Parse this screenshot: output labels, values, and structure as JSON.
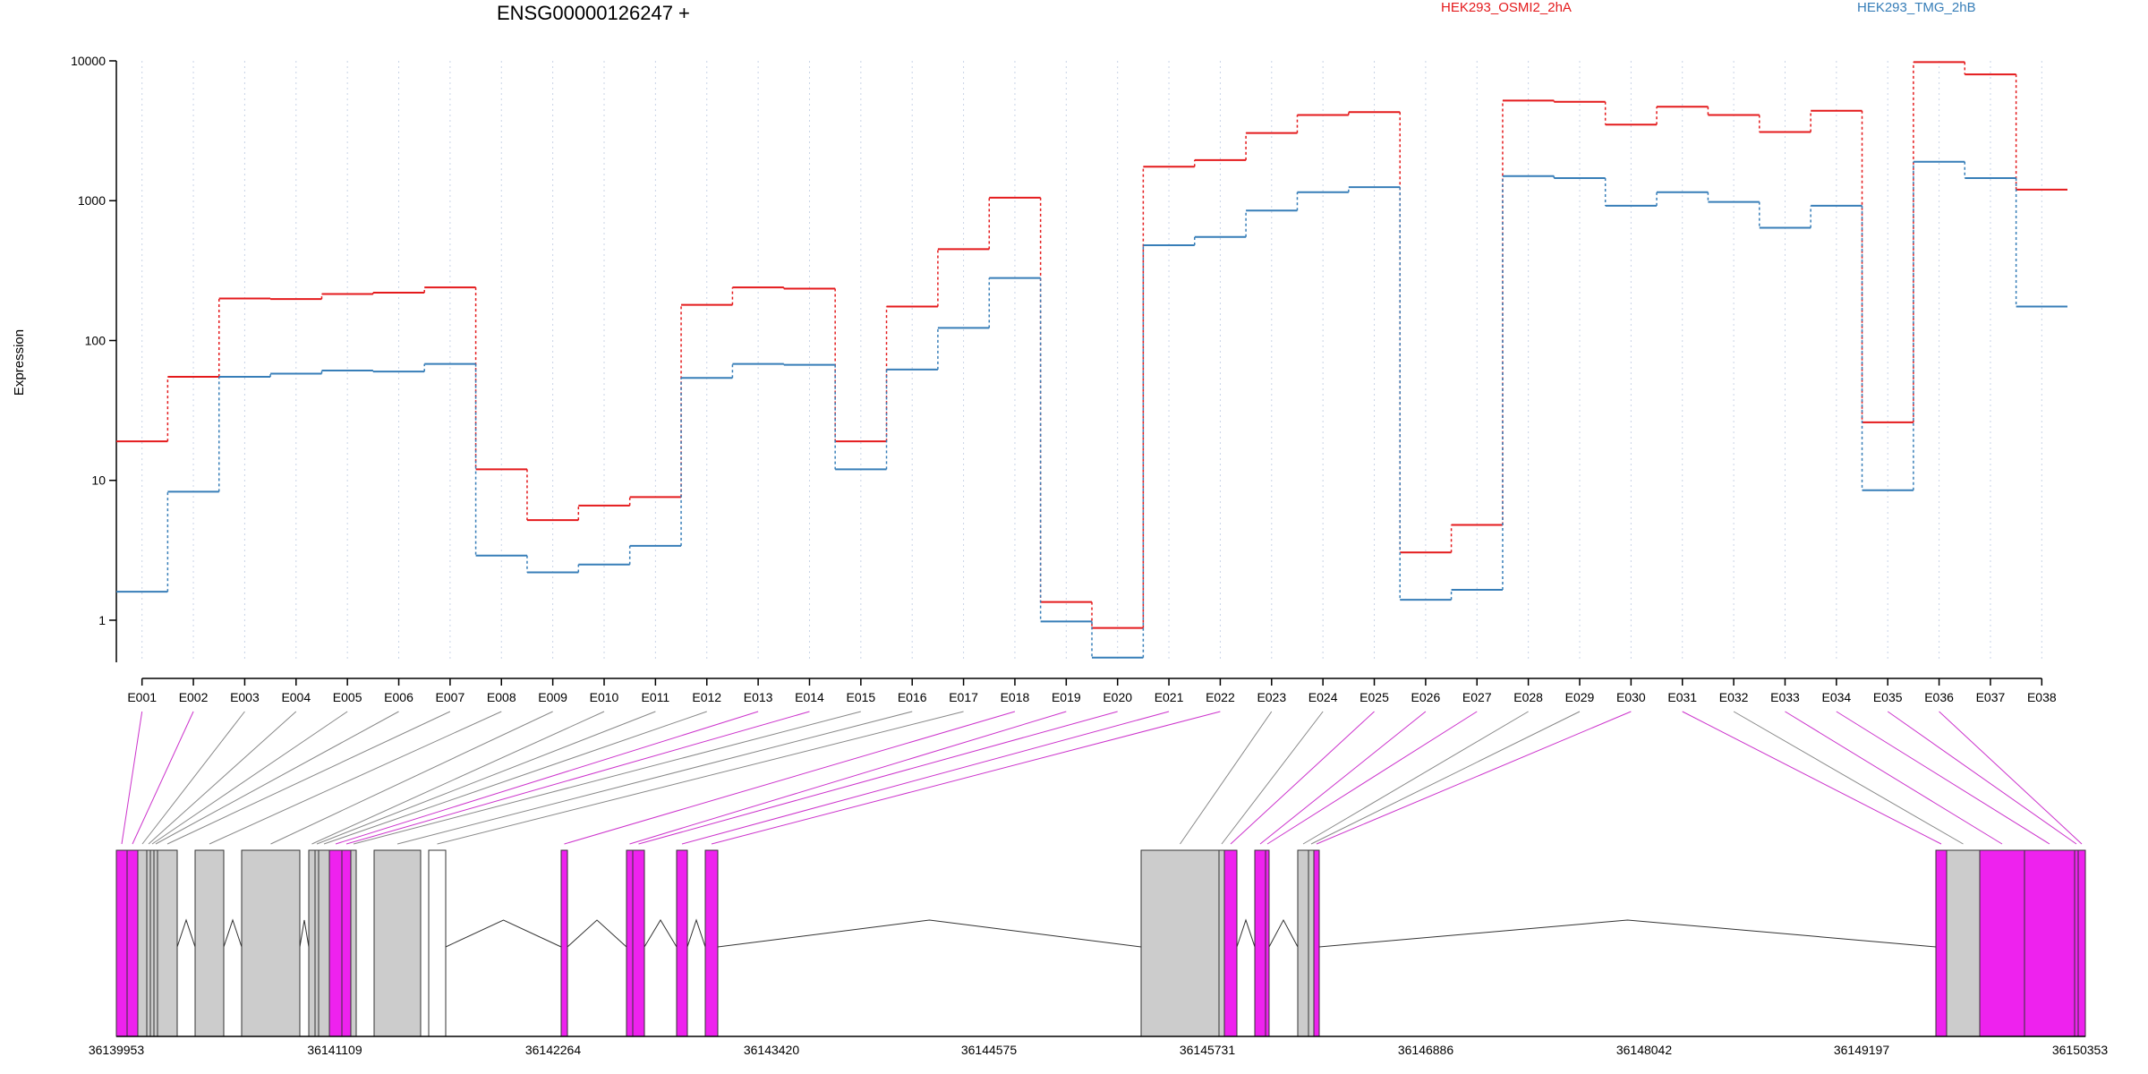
{
  "chart_data": {
    "type": "line",
    "title": "ENSG00000126247 +",
    "ylabel": "Expression",
    "xlabel": "",
    "yscale": "log",
    "ylim": [
      0.5,
      10000
    ],
    "yticks": [
      1,
      10,
      100,
      1000,
      10000
    ],
    "ytick_labels": [
      "1",
      "10",
      "100",
      "1000",
      "10000"
    ],
    "grid": "vertical dotted lines at each exon bin",
    "legend_placement": "top",
    "categories": [
      "E001",
      "E002",
      "E003",
      "E004",
      "E005",
      "E006",
      "E007",
      "E008",
      "E009",
      "E010",
      "E011",
      "E012",
      "E013",
      "E014",
      "E015",
      "E016",
      "E017",
      "E018",
      "E019",
      "E020",
      "E021",
      "E022",
      "E023",
      "E024",
      "E025",
      "E026",
      "E027",
      "E028",
      "E029",
      "E030",
      "E031",
      "E032",
      "E033",
      "E034",
      "E035",
      "E036",
      "E037",
      "E038"
    ],
    "series": [
      {
        "name": "HEK293_OSMI2_2hA",
        "color": "#e41a1c",
        "values": [
          19,
          55,
          200,
          198,
          215,
          220,
          240,
          12,
          5.2,
          6.6,
          7.6,
          180,
          240,
          235,
          19,
          175,
          450,
          1050,
          1.35,
          0.88,
          1750,
          1950,
          3050,
          4100,
          4300,
          3.05,
          4.8,
          5200,
          5100,
          3500,
          4700,
          4100,
          3100,
          4400,
          26,
          9800,
          8000,
          1200
        ]
      },
      {
        "name": "HEK293_TMG_2hB",
        "color": "#377eb8",
        "values": [
          1.6,
          8.3,
          55,
          58,
          61,
          60,
          68,
          2.9,
          2.2,
          2.5,
          3.4,
          54,
          68,
          67,
          12,
          62,
          123,
          280,
          0.98,
          0.54,
          480,
          550,
          850,
          1150,
          1250,
          1.4,
          1.65,
          1500,
          1450,
          920,
          1150,
          980,
          640,
          920,
          8.5,
          1900,
          1450,
          175
        ]
      }
    ],
    "gene_model": {
      "coordinate_ticks": [
        "36139953",
        "36141109",
        "36142264",
        "36143420",
        "36144575",
        "36145731",
        "36146886",
        "36148042",
        "36149197",
        "36150353"
      ],
      "coord_start": 36139953,
      "coord_end": 36150353,
      "highlight_color": "#ee22ee",
      "plain_color": "#cccccc",
      "exons": [
        {
          "start": 36139953,
          "end": 36140015,
          "highlight": true
        },
        {
          "start": 36140015,
          "end": 36140065,
          "highlight": true
        },
        {
          "start": 36140065,
          "end": 36140085,
          "highlight": false
        },
        {
          "start": 36140085,
          "end": 36140095,
          "highlight": false
        },
        {
          "start": 36140095,
          "end": 36140105,
          "highlight": false
        },
        {
          "start": 36140105,
          "end": 36140115,
          "highlight": false
        },
        {
          "start": 36140115,
          "end": 36140145,
          "highlight": false
        },
        {
          "start": 36140145,
          "end": 36140245,
          "highlight": false
        },
        {
          "start": 36140350,
          "end": 36140505,
          "highlight": false
        },
        {
          "start": 36140620,
          "end": 36140925,
          "highlight": false
        },
        {
          "start": 36140970,
          "end": 36141005,
          "highlight": false
        },
        {
          "start": 36141005,
          "end": 36141015,
          "highlight": false
        },
        {
          "start": 36141015,
          "end": 36141055,
          "highlight": false
        },
        {
          "start": 36141055,
          "end": 36141085,
          "highlight": true
        },
        {
          "start": 36141085,
          "end": 36141125,
          "highlight": true
        },
        {
          "start": 36141125,
          "end": 36141165,
          "highlight": false
        },
        {
          "start": 36141240,
          "end": 36141505,
          "highlight": false
        },
        {
          "start": 36141505,
          "end": 36141580,
          "highlight": null
        },
        {
          "start": 36142235,
          "end": 36142275,
          "highlight": true
        },
        {
          "start": 36142590,
          "end": 36142615,
          "highlight": true
        },
        {
          "start": 36142615,
          "end": 36142675,
          "highlight": true
        },
        {
          "start": 36142840,
          "end": 36142895,
          "highlight": true
        },
        {
          "start": 36143000,
          "end": 36143065,
          "highlight": true
        },
        {
          "start": 36145395,
          "end": 36145800,
          "highlight": false
        },
        {
          "start": 36145800,
          "end": 36145830,
          "highlight": false
        },
        {
          "start": 36145830,
          "end": 36145890,
          "highlight": true
        },
        {
          "start": 36145990,
          "end": 36146055,
          "highlight": true
        },
        {
          "start": 36146055,
          "end": 36146075,
          "highlight": true
        },
        {
          "start": 36146160,
          "end": 36146210,
          "highlight": false
        },
        {
          "start": 36146210,
          "end": 36146240,
          "highlight": false
        },
        {
          "start": 36146240,
          "end": 36146280,
          "highlight": true
        },
        {
          "start": 36150353,
          "end": 36150353,
          "highlight": null
        },
        {
          "start": 36149875,
          "end": 36149940,
          "highlight": true
        },
        {
          "start": 36149940,
          "end": 36150110,
          "highlight": false
        },
        {
          "start": 36150110,
          "end": 36150340,
          "highlight": true
        },
        {
          "start": 36150340,
          "end": 36150570,
          "highlight": true
        },
        {
          "start": 36150570,
          "end": 36150610,
          "highlight": true
        },
        {
          "start": 36150610,
          "end": 36150620,
          "highlight": true
        }
      ]
    }
  }
}
